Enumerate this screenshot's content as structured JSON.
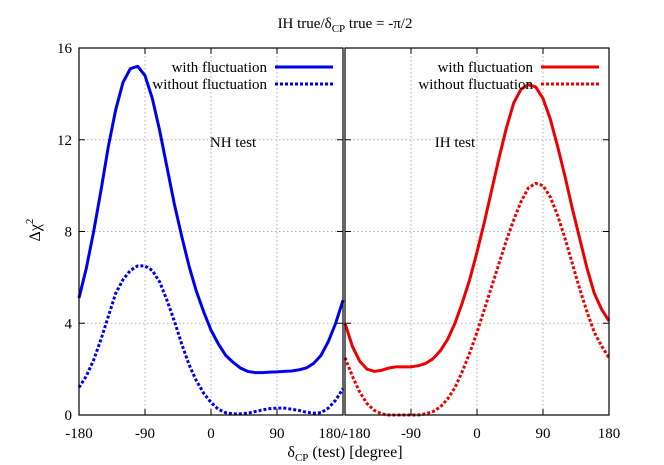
{
  "chart_data": [
    {
      "type": "line",
      "panel": "left",
      "annotation": "NH test",
      "xlim": [
        -180,
        180
      ],
      "ylim": [
        0,
        16
      ],
      "xticks": [
        "-180",
        "-90",
        "0",
        "90",
        "180/"
      ],
      "yticks": [
        "0",
        "4",
        "8",
        "12",
        "16"
      ],
      "grid": true,
      "legend_position": "top-right",
      "series": [
        {
          "name": "with fluctuation",
          "color": "#0000ee",
          "style": "solid",
          "x": [
            -180,
            -170,
            -160,
            -150,
            -140,
            -130,
            -120,
            -110,
            -100,
            -90,
            -80,
            -70,
            -60,
            -50,
            -40,
            -30,
            -20,
            -10,
            0,
            10,
            20,
            30,
            40,
            50,
            60,
            70,
            80,
            90,
            100,
            110,
            120,
            130,
            140,
            150,
            160,
            170,
            180
          ],
          "y": [
            5.1,
            6.4,
            8.0,
            9.8,
            11.7,
            13.3,
            14.5,
            15.1,
            15.2,
            14.8,
            13.8,
            12.4,
            10.8,
            9.2,
            7.8,
            6.5,
            5.4,
            4.5,
            3.7,
            3.1,
            2.6,
            2.3,
            2.05,
            1.9,
            1.85,
            1.85,
            1.87,
            1.88,
            1.9,
            1.92,
            1.97,
            2.05,
            2.25,
            2.6,
            3.2,
            4.0,
            5.0
          ]
        },
        {
          "name": "without fluctuation",
          "color": "#0000ee",
          "style": "dashed",
          "x": [
            -180,
            -170,
            -160,
            -150,
            -140,
            -130,
            -120,
            -110,
            -100,
            -90,
            -80,
            -70,
            -60,
            -50,
            -40,
            -30,
            -20,
            -10,
            0,
            10,
            20,
            30,
            40,
            50,
            60,
            70,
            80,
            90,
            100,
            110,
            120,
            130,
            140,
            150,
            160,
            170,
            180
          ],
          "y": [
            1.2,
            1.7,
            2.4,
            3.3,
            4.3,
            5.3,
            5.9,
            6.3,
            6.5,
            6.5,
            6.3,
            5.8,
            5.0,
            4.1,
            3.1,
            2.2,
            1.5,
            0.95,
            0.55,
            0.25,
            0.1,
            0.05,
            0.05,
            0.08,
            0.15,
            0.22,
            0.28,
            0.3,
            0.3,
            0.25,
            0.2,
            0.12,
            0.08,
            0.1,
            0.3,
            0.65,
            1.15
          ]
        }
      ]
    },
    {
      "type": "line",
      "panel": "right",
      "annotation": "IH test",
      "xlim": [
        -180,
        180
      ],
      "ylim": [
        0,
        16
      ],
      "xticks": [
        "-180",
        "-90",
        "0",
        "90",
        "180"
      ],
      "grid": true,
      "legend_position": "top-right",
      "series": [
        {
          "name": "with fluctuation",
          "color": "#ee0000",
          "style": "solid",
          "x": [
            -180,
            -170,
            -160,
            -150,
            -140,
            -130,
            -120,
            -110,
            -100,
            -90,
            -80,
            -70,
            -60,
            -50,
            -40,
            -30,
            -20,
            -10,
            0,
            10,
            20,
            30,
            40,
            50,
            60,
            70,
            80,
            90,
            100,
            110,
            120,
            130,
            140,
            150,
            160,
            170,
            180
          ],
          "y": [
            4.0,
            3.0,
            2.35,
            2.0,
            1.9,
            1.95,
            2.05,
            2.1,
            2.1,
            2.1,
            2.15,
            2.25,
            2.45,
            2.8,
            3.3,
            4.0,
            4.9,
            5.9,
            7.1,
            8.4,
            9.8,
            11.2,
            12.5,
            13.6,
            14.2,
            14.4,
            14.3,
            13.8,
            12.9,
            11.7,
            10.4,
            9.0,
            7.7,
            6.4,
            5.3,
            4.6,
            4.1
          ]
        },
        {
          "name": "without fluctuation",
          "color": "#ee0000",
          "style": "dashed",
          "x": [
            -180,
            -170,
            -160,
            -150,
            -140,
            -130,
            -120,
            -110,
            -100,
            -90,
            -80,
            -70,
            -60,
            -50,
            -40,
            -30,
            -20,
            -10,
            0,
            10,
            20,
            30,
            40,
            50,
            60,
            70,
            80,
            90,
            100,
            110,
            120,
            130,
            140,
            150,
            160,
            170,
            180
          ],
          "y": [
            2.5,
            1.7,
            1.0,
            0.5,
            0.2,
            0.05,
            0.0,
            0.0,
            0.0,
            0.0,
            0.0,
            0.05,
            0.15,
            0.35,
            0.7,
            1.2,
            1.9,
            2.7,
            3.6,
            4.6,
            5.6,
            6.6,
            7.6,
            8.5,
            9.3,
            9.9,
            10.1,
            10.0,
            9.5,
            8.7,
            7.7,
            6.6,
            5.5,
            4.5,
            3.6,
            3.0,
            2.5
          ]
        }
      ]
    }
  ],
  "labels": {
    "title_prefix": "IH true/δ",
    "title_sub": "CP",
    "title_suffix": " true = -π/2",
    "ylabel_main": "Δχ",
    "ylabel_sup": "2",
    "xlabel_prefix": "δ",
    "xlabel_sub": "CP",
    "xlabel_suffix": " (test) [degree]"
  }
}
